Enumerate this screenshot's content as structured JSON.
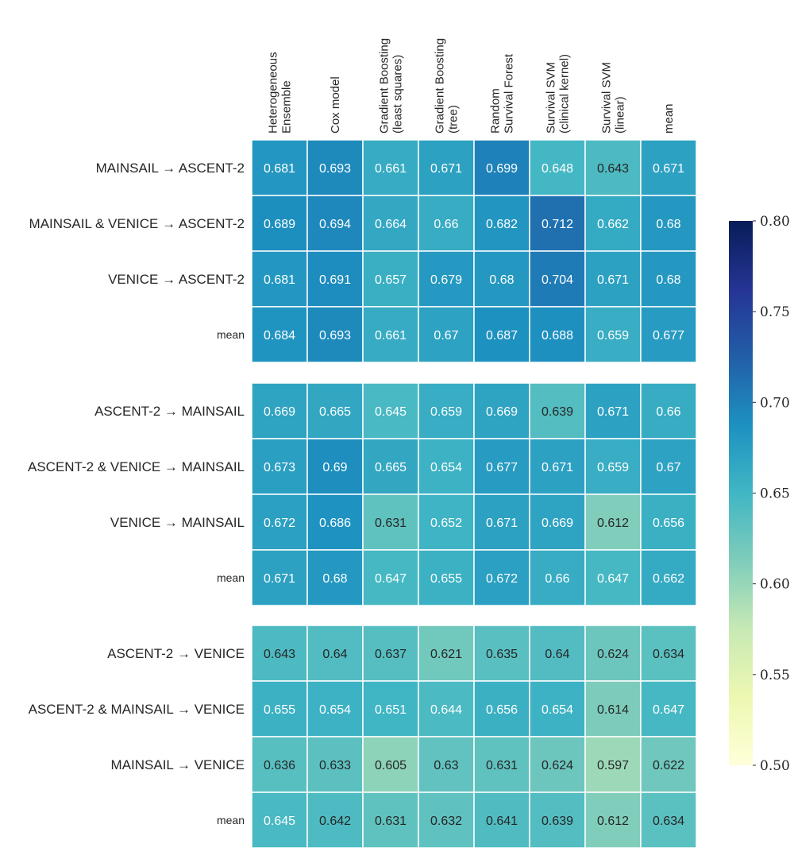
{
  "chart_data": {
    "type": "heatmap",
    "title": "",
    "columns": [
      [
        "Heterogeneous",
        "Ensemble"
      ],
      [
        "Cox model"
      ],
      [
        "Gradient Boosting",
        "(least squares)"
      ],
      [
        "Gradient Boosting",
        "(tree)"
      ],
      [
        "Random",
        "Survival Forest"
      ],
      [
        "Survival SVM",
        "(clinical kernel)"
      ],
      [
        "Survival SVM",
        "(linear)"
      ],
      [
        "mean"
      ]
    ],
    "groups": [
      {
        "rows": [
          {
            "label": "MAINSAIL → ASCENT-2",
            "values": [
              0.681,
              0.693,
              0.661,
              0.671,
              0.699,
              0.648,
              0.643,
              0.671
            ]
          },
          {
            "label": "MAINSAIL & VENICE → ASCENT-2",
            "values": [
              0.689,
              0.694,
              0.664,
              0.66,
              0.682,
              0.712,
              0.662,
              0.68
            ]
          },
          {
            "label": "VENICE → ASCENT-2",
            "values": [
              0.681,
              0.691,
              0.657,
              0.679,
              0.68,
              0.704,
              0.671,
              0.68
            ]
          },
          {
            "label": "mean",
            "values": [
              0.684,
              0.693,
              0.661,
              0.67,
              0.687,
              0.688,
              0.659,
              0.677
            ]
          }
        ]
      },
      {
        "rows": [
          {
            "label": "ASCENT-2 → MAINSAIL",
            "values": [
              0.669,
              0.665,
              0.645,
              0.659,
              0.669,
              0.639,
              0.671,
              0.66
            ]
          },
          {
            "label": "ASCENT-2 & VENICE → MAINSAIL",
            "values": [
              0.673,
              0.69,
              0.665,
              0.654,
              0.677,
              0.671,
              0.659,
              0.67
            ]
          },
          {
            "label": "VENICE → MAINSAIL",
            "values": [
              0.672,
              0.686,
              0.631,
              0.652,
              0.671,
              0.669,
              0.612,
              0.656
            ]
          },
          {
            "label": "mean",
            "values": [
              0.671,
              0.68,
              0.647,
              0.655,
              0.672,
              0.66,
              0.647,
              0.662
            ]
          }
        ]
      },
      {
        "rows": [
          {
            "label": "ASCENT-2 → VENICE",
            "values": [
              0.643,
              0.64,
              0.637,
              0.621,
              0.635,
              0.64,
              0.624,
              0.634
            ]
          },
          {
            "label": "ASCENT-2 & MAINSAIL → VENICE",
            "values": [
              0.655,
              0.654,
              0.651,
              0.644,
              0.656,
              0.654,
              0.614,
              0.647
            ]
          },
          {
            "label": "MAINSAIL → VENICE",
            "values": [
              0.636,
              0.633,
              0.605,
              0.63,
              0.631,
              0.624,
              0.597,
              0.622
            ]
          },
          {
            "label": "mean",
            "values": [
              0.645,
              0.642,
              0.631,
              0.632,
              0.641,
              0.639,
              0.612,
              0.634
            ]
          }
        ]
      }
    ],
    "colormap": "YlGnBu",
    "colormap_stops": [
      "#ffffd9",
      "#edf8b1",
      "#c7e9b4",
      "#7fcdbb",
      "#41b6c4",
      "#1d91c0",
      "#225ea8",
      "#253494",
      "#081d58"
    ],
    "vmin": 0.5,
    "vmax": 0.8,
    "colorbar_ticks": [
      "0.50",
      "0.55",
      "0.60",
      "0.65",
      "0.70",
      "0.75",
      "0.80"
    ],
    "text_colors": {
      "light": "#ffffff",
      "dark": "#262626"
    }
  }
}
